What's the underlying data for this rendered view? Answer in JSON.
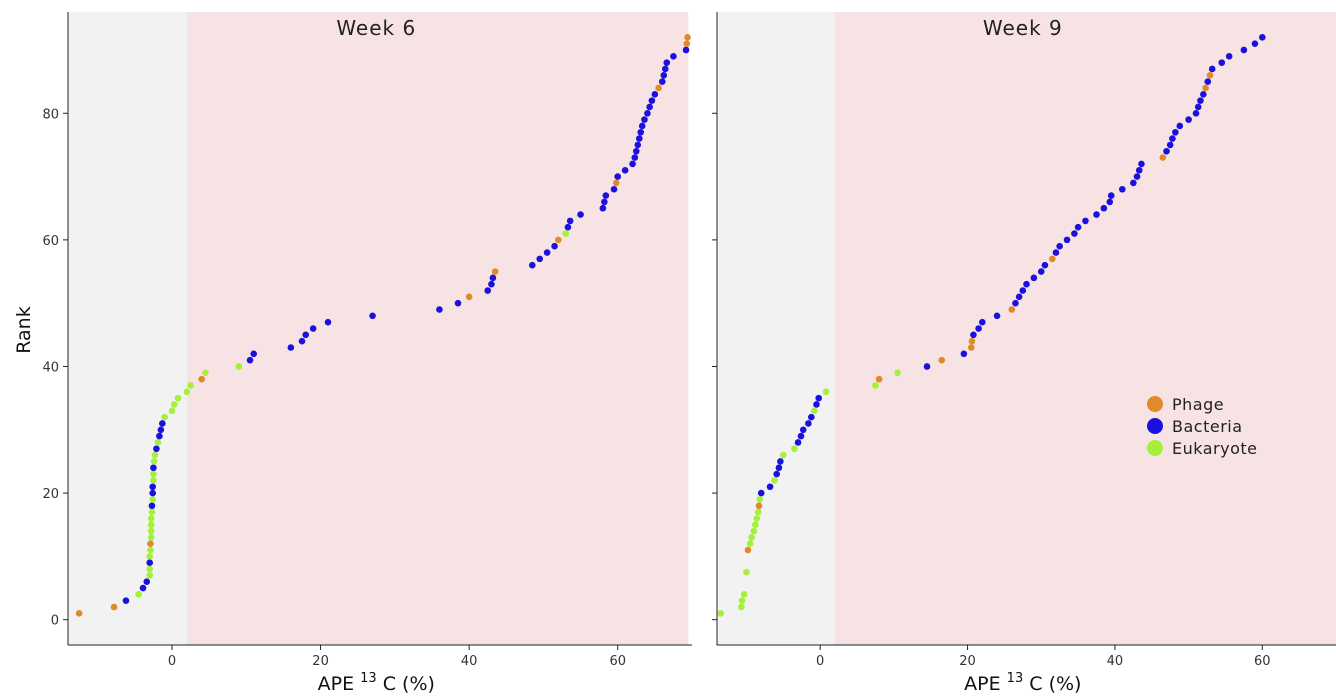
{
  "chart_data": {
    "type": "scatter",
    "ylabel": "Rank",
    "xlabel_main": "APE",
    "xlabel_sup": "13",
    "xlabel_rest": " C (%)",
    "xlim": [
      -14,
      70
    ],
    "ylim": [
      -4,
      96
    ],
    "x_ticks": [
      0,
      20,
      40,
      60
    ],
    "y_ticks": [
      0,
      20,
      40,
      60,
      80
    ],
    "grid": false,
    "legend_position": "right",
    "legend": [
      {
        "name": "Phage",
        "color": "#e08a2c"
      },
      {
        "name": "Bacteria",
        "color": "#1a10e0"
      },
      {
        "name": "Eukaryote",
        "color": "#a4f03a"
      }
    ],
    "colors": {
      "P": "#e08a2c",
      "B": "#1a10e0",
      "E": "#a4f03a",
      "region_grey": "#f2f2f2",
      "region_pink": "#f7e3e3"
    },
    "panels": [
      {
        "title": "Week 6",
        "grey_region": [
          -14,
          2
        ],
        "pink_region": [
          2,
          69.5
        ],
        "points": [
          [
            -12.5,
            1,
            "P"
          ],
          [
            -7.8,
            2,
            "P"
          ],
          [
            -6.2,
            3,
            "B"
          ],
          [
            -4.5,
            4,
            "E"
          ],
          [
            -3.9,
            5,
            "B"
          ],
          [
            -3.4,
            6,
            "B"
          ],
          [
            -3.0,
            7,
            "E"
          ],
          [
            -3.0,
            8,
            "E"
          ],
          [
            -3.0,
            9,
            "B"
          ],
          [
            -3.0,
            10,
            "E"
          ],
          [
            -2.9,
            11,
            "E"
          ],
          [
            -2.9,
            12,
            "P"
          ],
          [
            -2.8,
            13,
            "E"
          ],
          [
            -2.8,
            14,
            "E"
          ],
          [
            -2.8,
            15,
            "E"
          ],
          [
            -2.8,
            16,
            "E"
          ],
          [
            -2.7,
            17,
            "E"
          ],
          [
            -2.7,
            18,
            "B"
          ],
          [
            -2.6,
            19,
            "E"
          ],
          [
            -2.6,
            20,
            "B"
          ],
          [
            -2.6,
            21,
            "B"
          ],
          [
            -2.5,
            22,
            "E"
          ],
          [
            -2.5,
            23,
            "E"
          ],
          [
            -2.5,
            24,
            "B"
          ],
          [
            -2.4,
            25,
            "E"
          ],
          [
            -2.3,
            26,
            "E"
          ],
          [
            -2.1,
            27,
            "B"
          ],
          [
            -1.9,
            28,
            "E"
          ],
          [
            -1.7,
            29,
            "B"
          ],
          [
            -1.5,
            30,
            "B"
          ],
          [
            -1.3,
            31,
            "B"
          ],
          [
            -1.0,
            32,
            "E"
          ],
          [
            0.0,
            33,
            "E"
          ],
          [
            0.3,
            34,
            "E"
          ],
          [
            0.8,
            35,
            "E"
          ],
          [
            2.0,
            36,
            "E"
          ],
          [
            2.5,
            37,
            "E"
          ],
          [
            4.0,
            38,
            "P"
          ],
          [
            4.5,
            39,
            "E"
          ],
          [
            9.0,
            40,
            "E"
          ],
          [
            10.5,
            41,
            "B"
          ],
          [
            11.0,
            42,
            "B"
          ],
          [
            16.0,
            43,
            "B"
          ],
          [
            17.5,
            44,
            "B"
          ],
          [
            18.0,
            45,
            "B"
          ],
          [
            19.0,
            46,
            "B"
          ],
          [
            21.0,
            47,
            "B"
          ],
          [
            27.0,
            48,
            "B"
          ],
          [
            36.0,
            49,
            "B"
          ],
          [
            38.5,
            50,
            "B"
          ],
          [
            40.0,
            51,
            "P"
          ],
          [
            42.5,
            52,
            "B"
          ],
          [
            43.0,
            53,
            "B"
          ],
          [
            43.2,
            54,
            "B"
          ],
          [
            43.5,
            55,
            "P"
          ],
          [
            48.5,
            56,
            "B"
          ],
          [
            49.5,
            57,
            "B"
          ],
          [
            50.5,
            58,
            "B"
          ],
          [
            51.5,
            59,
            "B"
          ],
          [
            52.0,
            60,
            "P"
          ],
          [
            53.0,
            61,
            "E"
          ],
          [
            53.3,
            62,
            "B"
          ],
          [
            53.6,
            63,
            "B"
          ],
          [
            55.0,
            64,
            "B"
          ],
          [
            58.0,
            65,
            "B"
          ],
          [
            58.2,
            66,
            "B"
          ],
          [
            58.4,
            67,
            "B"
          ],
          [
            59.5,
            68,
            "B"
          ],
          [
            59.8,
            69,
            "P"
          ],
          [
            60.0,
            70,
            "B"
          ],
          [
            61.0,
            71,
            "B"
          ],
          [
            62.0,
            72,
            "B"
          ],
          [
            62.3,
            73,
            "B"
          ],
          [
            62.5,
            74,
            "B"
          ],
          [
            62.7,
            75,
            "B"
          ],
          [
            62.9,
            76,
            "B"
          ],
          [
            63.1,
            77,
            "B"
          ],
          [
            63.3,
            78,
            "B"
          ],
          [
            63.6,
            79,
            "B"
          ],
          [
            64.0,
            80,
            "B"
          ],
          [
            64.3,
            81,
            "B"
          ],
          [
            64.6,
            82,
            "B"
          ],
          [
            65.0,
            83,
            "B"
          ],
          [
            65.5,
            84,
            "P"
          ],
          [
            66.0,
            85,
            "B"
          ],
          [
            66.2,
            86,
            "B"
          ],
          [
            66.4,
            87,
            "B"
          ],
          [
            66.6,
            88,
            "B"
          ],
          [
            67.5,
            89,
            "B"
          ],
          [
            69.2,
            90,
            "B"
          ],
          [
            69.3,
            91,
            "P"
          ],
          [
            69.4,
            92,
            "P"
          ]
        ]
      },
      {
        "title": "Week 9",
        "grey_region": [
          -14,
          2
        ],
        "pink_region": [
          2,
          70
        ],
        "points": [
          [
            -13.5,
            1,
            "E"
          ],
          [
            -10.7,
            2,
            "E"
          ],
          [
            -10.6,
            3,
            "E"
          ],
          [
            -10.3,
            4,
            "E"
          ],
          [
            -10.0,
            7.5,
            "E"
          ],
          [
            -9.8,
            11,
            "P"
          ],
          [
            -9.5,
            12,
            "E"
          ],
          [
            -9.3,
            13,
            "E"
          ],
          [
            -9.0,
            14,
            "E"
          ],
          [
            -8.8,
            15,
            "E"
          ],
          [
            -8.6,
            16,
            "E"
          ],
          [
            -8.4,
            17,
            "E"
          ],
          [
            -8.3,
            18,
            "P"
          ],
          [
            -8.2,
            19,
            "E"
          ],
          [
            -8.0,
            20,
            "B"
          ],
          [
            -6.8,
            21,
            "B"
          ],
          [
            -6.2,
            22,
            "E"
          ],
          [
            -5.9,
            23,
            "B"
          ],
          [
            -5.6,
            24,
            "B"
          ],
          [
            -5.4,
            25,
            "B"
          ],
          [
            -5.0,
            26,
            "E"
          ],
          [
            -3.5,
            27,
            "E"
          ],
          [
            -3.0,
            28,
            "B"
          ],
          [
            -2.6,
            29,
            "B"
          ],
          [
            -2.3,
            30,
            "B"
          ],
          [
            -1.6,
            31,
            "B"
          ],
          [
            -1.2,
            32,
            "B"
          ],
          [
            -0.8,
            33,
            "E"
          ],
          [
            -0.5,
            34,
            "B"
          ],
          [
            -0.2,
            35,
            "B"
          ],
          [
            0.8,
            36,
            "E"
          ],
          [
            7.5,
            37,
            "E"
          ],
          [
            8.0,
            38,
            "P"
          ],
          [
            10.5,
            39,
            "E"
          ],
          [
            14.5,
            40,
            "B"
          ],
          [
            16.5,
            41,
            "P"
          ],
          [
            19.5,
            42,
            "B"
          ],
          [
            20.5,
            43,
            "P"
          ],
          [
            20.6,
            44,
            "P"
          ],
          [
            20.8,
            45,
            "B"
          ],
          [
            21.5,
            46,
            "B"
          ],
          [
            22.0,
            47,
            "B"
          ],
          [
            24.0,
            48,
            "B"
          ],
          [
            26.0,
            49,
            "P"
          ],
          [
            26.5,
            50,
            "B"
          ],
          [
            27.0,
            51,
            "B"
          ],
          [
            27.5,
            52,
            "B"
          ],
          [
            28.0,
            53,
            "B"
          ],
          [
            29.0,
            54,
            "B"
          ],
          [
            30.0,
            55,
            "B"
          ],
          [
            30.5,
            56,
            "B"
          ],
          [
            31.5,
            57,
            "P"
          ],
          [
            32.0,
            58,
            "B"
          ],
          [
            32.5,
            59,
            "B"
          ],
          [
            33.5,
            60,
            "B"
          ],
          [
            34.5,
            61,
            "B"
          ],
          [
            35.0,
            62,
            "B"
          ],
          [
            36.0,
            63,
            "B"
          ],
          [
            37.5,
            64,
            "B"
          ],
          [
            38.5,
            65,
            "B"
          ],
          [
            39.3,
            66,
            "B"
          ],
          [
            39.5,
            67,
            "B"
          ],
          [
            41.0,
            68,
            "B"
          ],
          [
            42.5,
            69,
            "B"
          ],
          [
            43.0,
            70,
            "B"
          ],
          [
            43.3,
            71,
            "B"
          ],
          [
            43.6,
            72,
            "B"
          ],
          [
            46.5,
            73,
            "P"
          ],
          [
            47.0,
            74,
            "B"
          ],
          [
            47.5,
            75,
            "B"
          ],
          [
            47.8,
            76,
            "B"
          ],
          [
            48.2,
            77,
            "B"
          ],
          [
            48.8,
            78,
            "B"
          ],
          [
            50.0,
            79,
            "B"
          ],
          [
            51.0,
            80,
            "B"
          ],
          [
            51.3,
            81,
            "B"
          ],
          [
            51.6,
            82,
            "B"
          ],
          [
            52.0,
            83,
            "B"
          ],
          [
            52.3,
            84,
            "P"
          ],
          [
            52.6,
            85,
            "B"
          ],
          [
            52.9,
            86,
            "P"
          ],
          [
            53.2,
            87,
            "B"
          ],
          [
            54.5,
            88,
            "B"
          ],
          [
            55.5,
            89,
            "B"
          ],
          [
            57.5,
            90,
            "B"
          ],
          [
            59.0,
            91,
            "B"
          ],
          [
            60.0,
            92,
            "B"
          ]
        ]
      }
    ]
  }
}
